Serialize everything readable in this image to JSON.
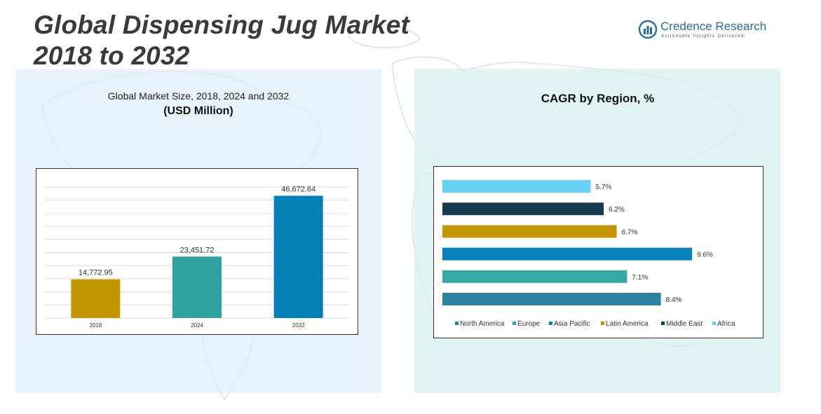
{
  "header": {
    "title_line1": "Global Dispensing Jug Market",
    "title_line2": "2018 to 2032"
  },
  "logo": {
    "name": "Credence Research",
    "tagline": "Actionable Insights Delivered",
    "icon": "bar-chart-globe-icon",
    "color": "#2a6ea0"
  },
  "left_panel": {
    "title": "Global Market Size, 2018, 2024 and 2032",
    "subtitle": "(USD Million)"
  },
  "right_panel": {
    "title": "CAGR by Region, %"
  },
  "chart_data": [
    {
      "type": "bar",
      "title": "Global Market Size, 2018, 2024 and 2032",
      "subtitle": "(USD Million)",
      "categories": [
        "2018",
        "2024",
        "2032"
      ],
      "values": [
        14772.95,
        23451.72,
        46672.64
      ],
      "data_labels": [
        "14,772.95",
        "23,451.72",
        "46,672.64"
      ],
      "colors": [
        "#c29600",
        "#30a2a2",
        "#0580b5"
      ],
      "ylim": [
        0,
        50000
      ],
      "grid": true,
      "legend": "none"
    },
    {
      "type": "bar",
      "orientation": "horizontal",
      "title": "CAGR by Region, %",
      "categories": [
        "North America",
        "Europe",
        "Asia Pacific",
        "Latin America",
        "Middle East",
        "Africa"
      ],
      "values": [
        8.4,
        7.1,
        9.6,
        6.7,
        6.2,
        5.7
      ],
      "data_labels": [
        "8.4%",
        "7.1%",
        "9.6%",
        "6.7%",
        "6.2%",
        "5.7%"
      ],
      "colors": [
        "#2e7fa0",
        "#35a8a5",
        "#0680b8",
        "#c29600",
        "#163b4e",
        "#67d1f6"
      ],
      "xlim": [
        0,
        10
      ],
      "grid": false,
      "legend": "bottom"
    }
  ]
}
